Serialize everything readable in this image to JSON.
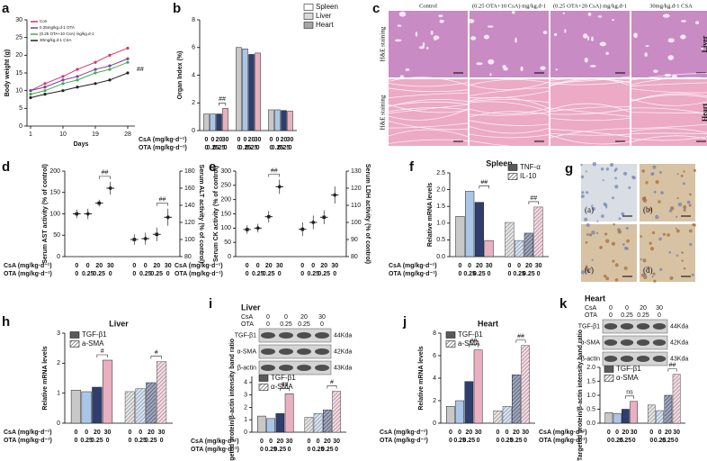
{
  "chart_data": [
    {
      "type": "line",
      "panel": "a",
      "xlabel": "Days",
      "ylabel": "Body weight (g)",
      "x": [
        1,
        5,
        10,
        14,
        19,
        23,
        28
      ],
      "xlim": [
        0,
        30
      ],
      "xticks": [
        1,
        10,
        19,
        28
      ],
      "ylim": [
        0,
        30
      ],
      "yticks": [
        0,
        5,
        10,
        15,
        20,
        25,
        30
      ],
      "annotation": "##",
      "series": [
        {
          "name": "Con",
          "color": "#d6336c",
          "values": [
            10,
            12,
            14,
            16,
            18,
            20,
            22
          ]
        },
        {
          "name": "0.25mg/kg.d-1 OTA",
          "color": "#7b3fa0",
          "values": [
            10,
            11,
            13,
            14,
            16,
            17,
            19
          ]
        },
        {
          "name": "(0.25 OTA+10 CsA) mg/kg.d-1",
          "color": "#3fae49",
          "values": [
            9,
            10,
            12,
            13,
            15,
            16,
            18
          ]
        },
        {
          "name": "30mg/kg.d-1 CSA",
          "color": "#222222",
          "values": [
            8,
            9,
            10,
            11,
            12,
            13,
            15
          ]
        }
      ]
    },
    {
      "type": "bar",
      "panel": "b",
      "ylabel": "Organ Index (%)",
      "ylim": [
        0,
        8
      ],
      "yticks": [
        0,
        2,
        4,
        6,
        8
      ],
      "annotation": "##",
      "bar_colors": [
        "#c8c8c8",
        "#a9c6e8",
        "#2f3e6e",
        "#e8b0c0"
      ],
      "row_labels": [
        "CsA (mg/kg·d⁻¹)",
        "OTA (mg/kg·d⁻¹)"
      ],
      "rows": [
        [
          "0",
          "0",
          "20",
          "30"
        ],
        [
          "0",
          "0.25",
          "0.25",
          "0"
        ]
      ],
      "series": [
        {
          "name": "Spleen",
          "color": "#ffffff",
          "values": [
            1.2,
            1.2,
            1.2,
            1.6
          ]
        },
        {
          "name": "Liver",
          "color": "#d9d9d9",
          "values": [
            6.0,
            5.9,
            5.5,
            5.6
          ]
        },
        {
          "name": "Heart",
          "color": "#a6a6a6",
          "values": [
            1.5,
            1.5,
            1.45,
            1.4
          ]
        }
      ]
    },
    {
      "type": "dot",
      "panel": "d",
      "ylabel": "Serum AST activity (% of control)",
      "y2label": "Serum ALT activity (% of control)",
      "ylim": [
        0,
        200
      ],
      "yticks": [
        0,
        50,
        100,
        150,
        200
      ],
      "y2lim": [
        80,
        180
      ],
      "y2ticks": [
        80,
        100,
        120,
        140,
        160,
        180
      ],
      "bar_colors": [
        "#222222",
        "#222222",
        "#222222",
        "#222222"
      ],
      "annotations": [
        "##",
        "##"
      ],
      "row_labels": [
        "CsA (mg/kg·d⁻¹)",
        "OTA (mg/kg·d⁻¹)"
      ],
      "rows": [
        [
          "0",
          "0",
          "20",
          "30"
        ],
        [
          "0",
          "0.25",
          "0.25",
          "0"
        ]
      ],
      "series": [
        {
          "values": [
            100,
            100,
            125,
            160
          ],
          "errors": [
            10,
            12,
            8,
            15
          ]
        },
        {
          "axis": "y2",
          "values": [
            100,
            101,
            106,
            126
          ],
          "errors": [
            6,
            7,
            8,
            10
          ]
        }
      ]
    },
    {
      "type": "dot",
      "panel": "e",
      "ylabel": "Serum CK activity (% of control)",
      "y2label": "Serum LDH activity (% of control)",
      "ylim": [
        0,
        300
      ],
      "yticks": [
        0,
        50,
        100,
        150,
        200,
        250,
        300
      ],
      "y2lim": [
        80,
        130
      ],
      "y2ticks": [
        80,
        90,
        100,
        110,
        120,
        130
      ],
      "bar_colors": [
        "#222222",
        "#222222",
        "#222222",
        "#222222"
      ],
      "annotations": [
        "##"
      ],
      "row_labels": [
        "CsA (mg/kg·d⁻¹)",
        "OTA (mg/kg·d⁻¹)"
      ],
      "rows": [
        [
          "0",
          "0",
          "20",
          "30"
        ],
        [
          "0",
          "0.25",
          "0.25",
          "0"
        ]
      ],
      "series": [
        {
          "values": [
            95,
            100,
            140,
            245
          ],
          "errors": [
            15,
            15,
            20,
            25
          ]
        },
        {
          "axis": "y2",
          "values": [
            96,
            100,
            103,
            116
          ],
          "errors": [
            4,
            4,
            4,
            5
          ]
        }
      ]
    },
    {
      "type": "bar",
      "panel": "f",
      "title": "Spleen",
      "ylabel": "Relative mRNA levels",
      "ylim": [
        0,
        2.5
      ],
      "yticks": [
        {
          "value": 0,
          "label": "0.0"
        },
        0.5,
        {
          "value": 1,
          "label": "1.0"
        },
        1.5,
        {
          "value": 2,
          "label": "2.0"
        },
        2.5
      ],
      "bar_colors": [
        "#c8c8c8",
        "#a9c6e8",
        "#2f3e6e",
        "#e8b0c0"
      ],
      "annotations": [
        "##",
        "##"
      ],
      "row_labels": [
        "CsA (mg/kg·d⁻¹)",
        "OTA (mg/kg·d⁻¹)"
      ],
      "rows": [
        [
          "0",
          "0",
          "20",
          "30"
        ],
        [
          "0",
          "0.25",
          "0.25",
          "0"
        ]
      ],
      "series": [
        {
          "name": "TNF-α",
          "color": "#595959",
          "values": [
            1.2,
            1.95,
            1.62,
            0.48
          ]
        },
        {
          "name": "IL-10",
          "color": "#ffffff",
          "hatch": true,
          "values": [
            1.02,
            0.48,
            0.7,
            1.48
          ]
        }
      ]
    },
    {
      "type": "bar",
      "panel": "h",
      "title": "Liver",
      "ylabel": "Relative mRNA levels",
      "ylim": [
        0,
        3
      ],
      "yticks": [
        0,
        1,
        2,
        3
      ],
      "bar_colors": [
        "#c8c8c8",
        "#a9c6e8",
        "#2f3e6e",
        "#e8b0c0"
      ],
      "annotations": [
        "#",
        "#"
      ],
      "row_labels": [
        "CsA (mg/kg·d⁻¹)",
        "OTA (mg/kg·d⁻¹)"
      ],
      "rows": [
        [
          "0",
          "0",
          "20",
          "30"
        ],
        [
          "0",
          "0.25",
          "0.25",
          "0"
        ]
      ],
      "series": [
        {
          "name": "TGF-β1",
          "color": "#595959",
          "values": [
            1.1,
            1.05,
            1.2,
            2.1
          ]
        },
        {
          "name": "a-SMA",
          "color": "#ffffff",
          "hatch": true,
          "values": [
            1.05,
            1.15,
            1.35,
            2.05
          ]
        }
      ]
    },
    {
      "type": "bar",
      "panel": "i",
      "title": "Liver",
      "ylabel": "Targeted protein/β-actin intensity band ratio",
      "ylim": [
        0,
        4.5
      ],
      "yticks": [
        0,
        1,
        2,
        3,
        4
      ],
      "bar_colors": [
        "#c8c8c8",
        "#a9c6e8",
        "#2f3e6e",
        "#e8b0c0"
      ],
      "annotations": [
        "##",
        "#"
      ],
      "row_labels": [
        "CsA (mg/kg·d⁻¹)",
        "OTA (mg/kg·d⁻¹)"
      ],
      "rows": [
        [
          "0",
          "0",
          "20",
          "30"
        ],
        [
          "0",
          "0.25",
          "0.25",
          "0"
        ]
      ],
      "blot": {
        "row_names": [
          "CsA",
          "OTA"
        ],
        "rows": [
          [
            "0",
            "0",
            "20",
            "30"
          ],
          [
            "0",
            "0.25",
            "0.25",
            "0"
          ]
        ],
        "bands": [
          "TGF-β1",
          "α-SMA",
          "β-actin"
        ],
        "sizes": [
          "44Kda",
          "42Kda",
          "43Kda"
        ]
      },
      "series": [
        {
          "name": "TGF-β1",
          "color": "#595959",
          "values": [
            1.3,
            1.1,
            1.5,
            3.1
          ]
        },
        {
          "name": "α-SMA",
          "color": "#ffffff",
          "hatch": true,
          "values": [
            1.2,
            1.5,
            1.8,
            3.3
          ]
        }
      ]
    },
    {
      "type": "bar",
      "panel": "j",
      "title": "Heart",
      "ylabel": "Relative mRNA levels",
      "ylim": [
        0,
        8
      ],
      "yticks": [
        0,
        2,
        4,
        6,
        8
      ],
      "bar_colors": [
        "#c8c8c8",
        "#a9c6e8",
        "#2f3e6e",
        "#e8b0c0"
      ],
      "annotations": [
        "##",
        "##"
      ],
      "row_labels": [
        "CsA (mg/kg·d⁻¹)",
        "OTA (mg/kg·d⁻¹)"
      ],
      "rows": [
        [
          "0",
          "0",
          "20",
          "30"
        ],
        [
          "0",
          "0.25",
          "0.25",
          "0"
        ]
      ],
      "series": [
        {
          "name": "TGF-β1",
          "color": "#595959",
          "values": [
            1.5,
            2.0,
            3.7,
            6.5
          ]
        },
        {
          "name": "a-SMA",
          "color": "#ffffff",
          "hatch": true,
          "values": [
            1.1,
            1.5,
            4.3,
            6.9
          ]
        }
      ]
    },
    {
      "type": "bar",
      "panel": "k",
      "title": "Heart",
      "ylabel": "Targeted protein/β-actin intensity band ratio",
      "ylim": [
        0,
        2
      ],
      "yticks": [
        {
          "value": 0,
          "label": "0.0"
        },
        0.5,
        {
          "value": 1,
          "label": "1.0"
        },
        1.5,
        {
          "value": 2,
          "label": "2.0"
        }
      ],
      "bar_colors": [
        "#c8c8c8",
        "#a9c6e8",
        "#2f3e6e",
        "#e8b0c0"
      ],
      "annotations": [
        "ns",
        "##"
      ],
      "row_labels": [
        "CsA (mg/kg·d⁻¹)",
        "OTA (mg/kg·d⁻¹)"
      ],
      "rows": [
        [
          "0",
          "0",
          "20",
          "30"
        ],
        [
          "0",
          "0.25",
          "0.25",
          "0"
        ]
      ],
      "blot": {
        "row_names": [
          "CsA",
          "OTA"
        ],
        "rows": [
          [
            "0",
            "0",
            "20",
            "30"
          ],
          [
            "0",
            "0.25",
            "0.25",
            "0"
          ]
        ],
        "bands": [
          "TGF-β1",
          "α-SMA",
          "β-actin"
        ],
        "sizes": [
          "44Kda",
          "42Kda",
          "43Kda"
        ]
      },
      "series": [
        {
          "name": "TGF-β1",
          "color": "#595959",
          "values": [
            0.38,
            0.35,
            0.5,
            0.78
          ]
        },
        {
          "name": "α-SMA",
          "color": "#ffffff",
          "hatch": true,
          "values": [
            0.65,
            0.45,
            1.0,
            1.75
          ]
        }
      ]
    }
  ],
  "images": [
    {
      "panel": "c",
      "columns": [
        "Control",
        "(0.25 OTA+10 CsA) mg/kg.d-1",
        "(0.25 OTA+20 CsA) mg/kg.d-1",
        "30mg/kg.d-1 CSA"
      ],
      "rows": [
        "H&E staining",
        "H&E staining"
      ],
      "organs": [
        "Liver",
        "Heart"
      ]
    },
    {
      "panel": "g",
      "labels": [
        "(a)",
        "(b)",
        "(c)",
        "(d)"
      ]
    }
  ]
}
